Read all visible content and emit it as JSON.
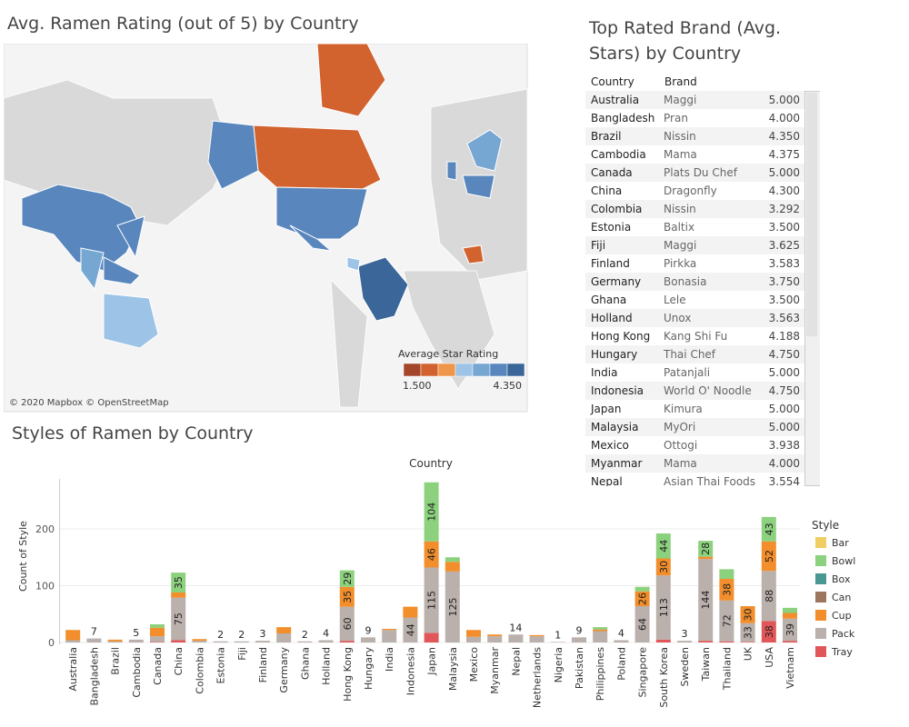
{
  "map": {
    "title": "Avg. Ramen Rating (out of 5) by Country",
    "credit": "© 2020 Mapbox © OpenStreetMap",
    "legend": {
      "title": "Average Star Rating",
      "colors": [
        "#a3462a",
        "#d2622e",
        "#f0964a",
        "#9dc3e6",
        "#76a6d2",
        "#5886bd",
        "#3a6699"
      ],
      "range": [
        {
          "value": 1.5,
          "label": "1.500"
        },
        {
          "value": 4.35,
          "label": "4.350"
        }
      ]
    }
  },
  "table": {
    "title": "Top Rated Brand (Avg. Stars) by Country",
    "header": [
      "Country",
      "Brand"
    ],
    "rows": [
      [
        "Australia",
        "Maggi",
        "5.000"
      ],
      [
        "Bangladesh",
        "Pran",
        "4.000"
      ],
      [
        "Brazil",
        "Nissin",
        "4.350"
      ],
      [
        "Cambodia",
        "Mama",
        "4.375"
      ],
      [
        "Canada",
        "Plats Du Chef",
        "5.000"
      ],
      [
        "China",
        "Dragonfly",
        "4.300"
      ],
      [
        "Colombia",
        "Nissin",
        "3.292"
      ],
      [
        "Estonia",
        "Baltix",
        "3.500"
      ],
      [
        "Fiji",
        "Maggi",
        "3.625"
      ],
      [
        "Finland",
        "Pirkka",
        "3.583"
      ],
      [
        "Germany",
        "Bonasia",
        "3.750"
      ],
      [
        "Ghana",
        "Lele",
        "3.500"
      ],
      [
        "Holland",
        "Unox",
        "3.563"
      ],
      [
        "Hong Kong",
        "Kang Shi Fu",
        "4.188"
      ],
      [
        "Hungary",
        "Thai Chef",
        "4.750"
      ],
      [
        "India",
        "Patanjali",
        "5.000"
      ],
      [
        "Indonesia",
        "World O' Noodle",
        "4.750"
      ],
      [
        "Japan",
        "Kimura",
        "5.000"
      ],
      [
        "Malaysia",
        "MyOri",
        "5.000"
      ],
      [
        "Mexico",
        "Ottogi",
        "3.938"
      ],
      [
        "Myanmar",
        "Mama",
        "4.000"
      ],
      [
        "Nepal",
        "Asian Thai Foods",
        "3.554"
      ]
    ]
  },
  "chart_data": {
    "type": "stacked_bar",
    "title": "Styles of Ramen by Country",
    "x_label": "Country",
    "y_label": "Count of Style",
    "legend_title": "Style",
    "categories": [
      "Australia",
      "Bangladesh",
      "Brazil",
      "Cambodia",
      "Canada",
      "China",
      "Colombia",
      "Estonia",
      "Fiji",
      "Finland",
      "Germany",
      "Ghana",
      "Holland",
      "Hong Kong",
      "Hungary",
      "India",
      "Indonesia",
      "Japan",
      "Malaysia",
      "Mexico",
      "Myanmar",
      "Nepal",
      "Netherlands",
      "Nigeria",
      "Pakistan",
      "Philippines",
      "Poland",
      "Singapore",
      "South Korea",
      "Sweden",
      "Taiwan",
      "Thailand",
      "UK",
      "USA",
      "Vietnam"
    ],
    "series": [
      {
        "name": "Bar",
        "color": "#f1ce63",
        "values": [
          0,
          0,
          0,
          0,
          0,
          0,
          0,
          0,
          0,
          0,
          0,
          0,
          0,
          0,
          0,
          0,
          0,
          0,
          0,
          0,
          0,
          0,
          0,
          0,
          0,
          0,
          0,
          0,
          0,
          0,
          0,
          0,
          0,
          0,
          0
        ]
      },
      {
        "name": "Bowl",
        "color": "#8cd17d",
        "values": [
          0,
          0,
          0,
          0,
          6,
          35,
          0,
          0,
          0,
          0,
          0,
          0,
          0,
          29,
          0,
          0,
          0,
          104,
          8,
          0,
          0,
          0,
          0,
          0,
          0,
          4,
          0,
          8,
          44,
          0,
          28,
          17,
          0,
          43,
          9
        ]
      },
      {
        "name": "Box",
        "color": "#499894",
        "values": [
          0,
          0,
          0,
          0,
          0,
          0,
          0,
          0,
          0,
          0,
          0,
          0,
          0,
          0,
          0,
          0,
          0,
          0,
          0,
          0,
          0,
          0,
          0,
          0,
          0,
          0,
          0,
          0,
          0,
          0,
          0,
          0,
          0,
          0,
          0
        ]
      },
      {
        "name": "Can",
        "color": "#9d7660",
        "values": [
          0,
          0,
          0,
          0,
          0,
          0,
          0,
          0,
          0,
          0,
          0,
          0,
          0,
          0,
          0,
          0,
          0,
          0,
          0,
          0,
          0,
          0,
          0,
          0,
          0,
          0,
          0,
          0,
          0,
          0,
          0,
          0,
          0,
          0,
          0
        ]
      },
      {
        "name": "Cup",
        "color": "#f28e2b",
        "values": [
          18,
          0,
          3,
          0,
          15,
          9,
          3,
          0,
          0,
          0,
          11,
          0,
          0,
          35,
          0,
          2,
          19,
          46,
          17,
          12,
          3,
          0,
          2,
          0,
          0,
          3,
          0,
          26,
          30,
          0,
          4,
          38,
          30,
          52,
          10
        ]
      },
      {
        "name": "Pack",
        "color": "#bab0ac",
        "values": [
          4,
          7,
          2,
          5,
          10,
          75,
          3,
          2,
          2,
          3,
          16,
          2,
          4,
          60,
          9,
          22,
          44,
          115,
          125,
          10,
          11,
          14,
          11,
          1,
          9,
          20,
          4,
          64,
          113,
          3,
          144,
          72,
          33,
          88,
          39
        ]
      },
      {
        "name": "Tray",
        "color": "#e15759",
        "values": [
          0,
          0,
          0,
          0,
          1,
          4,
          0,
          0,
          0,
          0,
          0,
          0,
          0,
          3,
          0,
          0,
          0,
          17,
          0,
          0,
          0,
          0,
          0,
          0,
          0,
          0,
          0,
          0,
          5,
          0,
          3,
          2,
          1,
          38,
          3
        ]
      }
    ],
    "ylim": [
      0,
      288
    ],
    "yticks": [
      0,
      100,
      200
    ],
    "grid": true
  }
}
